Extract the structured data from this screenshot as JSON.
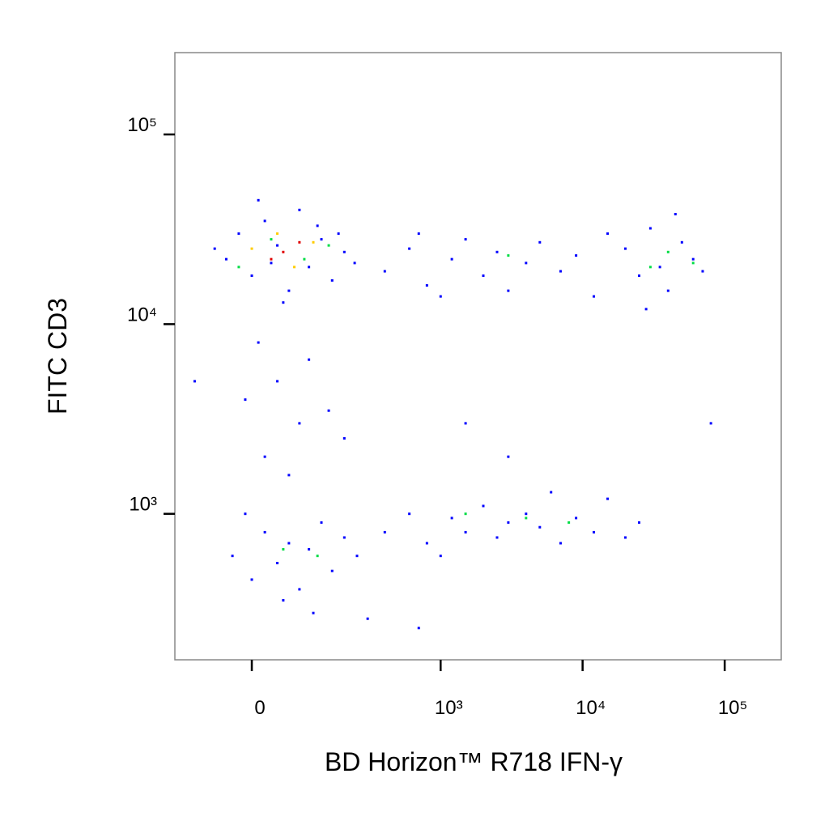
{
  "chart_data": {
    "type": "scatter",
    "x_label": "BD Horizon™ R718 IFN-γ",
    "y_label": "FITC  CD3",
    "xscale": "biexponential",
    "yscale": "log",
    "xlim": [
      -150,
      250000
    ],
    "ylim": [
      170,
      270000
    ],
    "xticks": [
      0,
      {
        "value": 1000,
        "label": "10³"
      },
      {
        "value": 10000,
        "label": "10⁴"
      },
      {
        "value": 100000,
        "label": "10⁵"
      }
    ],
    "yticks": [
      {
        "value": 1000,
        "label": "10³"
      },
      {
        "value": 10000,
        "label": "10⁴"
      },
      {
        "value": 100000,
        "label": "10⁵"
      }
    ],
    "grid": false,
    "series": [
      {
        "color": "#0000ff",
        "x": [
          -40,
          -20,
          0,
          20,
          40,
          60,
          80,
          100,
          130,
          160,
          200,
          -60,
          10,
          50,
          120,
          180,
          240,
          30,
          400,
          600,
          800,
          1200,
          1500,
          2000,
          2500,
          3000,
          4000,
          5000,
          7000,
          9000,
          12000,
          15000,
          700,
          1000,
          20000,
          25000,
          30000,
          35000,
          40000,
          50000,
          60000,
          45000,
          70000,
          28000,
          10,
          40,
          80,
          20,
          100,
          150,
          60,
          200,
          -10,
          1500,
          3000,
          -30,
          0,
          20,
          40,
          60,
          80,
          100,
          130,
          160,
          200,
          -10,
          50,
          110,
          250,
          400,
          600,
          800,
          1200,
          1500,
          2000,
          2500,
          3000,
          4000,
          5000,
          7000,
          9000,
          12000,
          15000,
          20000,
          25000,
          1000,
          6000,
          -100,
          80000,
          300,
          700
        ],
        "y": [
          22000,
          30000,
          18000,
          35000,
          26000,
          15000,
          40000,
          20000,
          28000,
          17000,
          24000,
          25000,
          45000,
          13000,
          33000,
          30000,
          21000,
          21000,
          19000,
          25000,
          16000,
          22000,
          28000,
          18000,
          24000,
          15000,
          21000,
          27000,
          19000,
          23000,
          14000,
          30000,
          30000,
          14000,
          25000,
          18000,
          32000,
          20000,
          15000,
          27000,
          22000,
          38000,
          19000,
          12000,
          8000,
          5000,
          3000,
          2000,
          6500,
          3500,
          1600,
          2500,
          4000,
          3000,
          2000,
          600,
          450,
          800,
          550,
          700,
          400,
          650,
          900,
          500,
          750,
          1000,
          350,
          300,
          600,
          800,
          1000,
          700,
          950,
          800,
          1100,
          750,
          900,
          1000,
          850,
          700,
          950,
          800,
          1200,
          750,
          900,
          600,
          1300,
          5000,
          3000,
          280,
          250
        ]
      },
      {
        "color": "#00dd44",
        "x": [
          30,
          90,
          150,
          -20,
          3000,
          40000,
          30000,
          60000,
          50,
          120,
          4000,
          8000,
          1500
        ],
        "y": [
          28000,
          22000,
          26000,
          20000,
          23000,
          24000,
          20000,
          21000,
          650,
          600,
          950,
          900,
          1000
        ]
      },
      {
        "color": "#ffcc00",
        "x": [
          40,
          70,
          0,
          110
        ],
        "y": [
          30000,
          20000,
          25000,
          27000
        ]
      },
      {
        "color": "#e00000",
        "x": [
          50,
          80,
          30
        ],
        "y": [
          24000,
          27000,
          22000
        ]
      }
    ]
  }
}
